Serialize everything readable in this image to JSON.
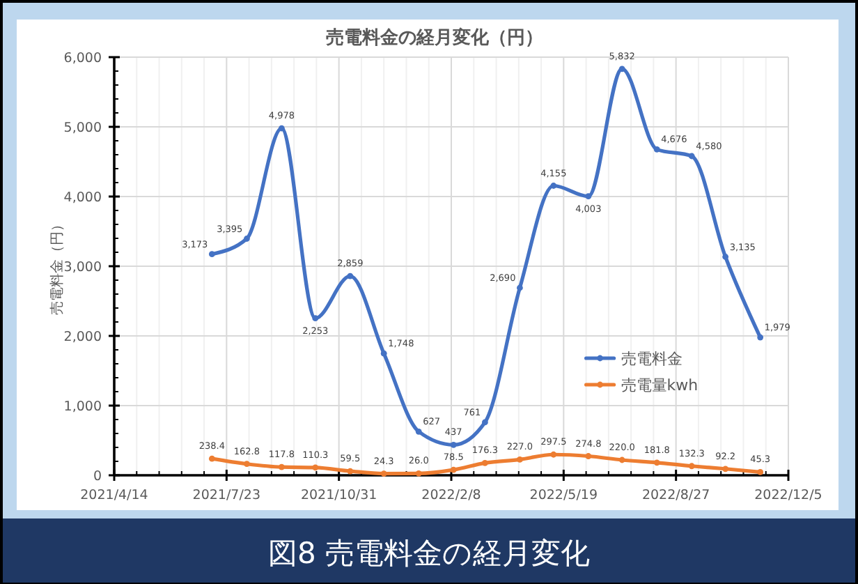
{
  "chart_data": {
    "type": "line",
    "title": "売電料金の経月変化（円）",
    "ylabel": "売電料金（円）",
    "annotations": [
      "図8 売電料金の経月変化"
    ],
    "x": [
      "2021-07-10",
      "2021-08-10",
      "2021-09-10",
      "2021-10-10",
      "2021-11-10",
      "2021-12-10",
      "2022-01-10",
      "2022-02-10",
      "2022-03-10",
      "2022-04-10",
      "2022-05-10",
      "2022-06-10",
      "2022-07-10",
      "2022-08-10",
      "2022-09-10",
      "2022-10-10",
      "2022-11-10"
    ],
    "series": [
      {
        "name": "売電料金",
        "color": "#4472c4",
        "values": [
          3173,
          3395,
          4978,
          2253,
          2859,
          1748,
          627,
          437,
          761,
          2690,
          4155,
          4003,
          5832,
          4676,
          4580,
          3135,
          1979
        ],
        "value_labels": [
          "3,173",
          "3,395",
          "4,978",
          "2,253",
          "2,859",
          "1,748",
          "627",
          "437",
          "761",
          "2,690",
          "4,155",
          "4,003",
          "5,832",
          "4,676",
          "4,580",
          "3,135",
          "1,979"
        ]
      },
      {
        "name": "売電量kwh",
        "color": "#ed7d31",
        "values": [
          238.4,
          162.8,
          117.8,
          110.3,
          59.5,
          24.3,
          26.0,
          78.5,
          176.3,
          227.0,
          297.5,
          274.8,
          220.0,
          181.8,
          132.3,
          92.2,
          45.3
        ],
        "value_labels": [
          "238.4",
          "162.8",
          "117.8",
          "110.3",
          "59.5",
          "24.3",
          "26.0",
          "78.5",
          "176.3",
          "227.0",
          "297.5",
          "274.8",
          "220.0",
          "181.8",
          "132.3",
          "92.2",
          "45.3"
        ]
      }
    ],
    "xlim": [
      "2021-04-14",
      "2022-12-05"
    ],
    "xticks": [
      {
        "value": "2021-04-14",
        "label": "2021/4/14"
      },
      {
        "value": "2021-05-04",
        "label": null
      },
      {
        "value": "2021-05-24",
        "label": null
      },
      {
        "value": "2021-06-13",
        "label": null
      },
      {
        "value": "2021-07-03",
        "label": null
      },
      {
        "value": "2021-07-23",
        "label": "2021/7/23"
      },
      {
        "value": "2021-08-12",
        "label": null
      },
      {
        "value": "2021-09-01",
        "label": null
      },
      {
        "value": "2021-09-21",
        "label": null
      },
      {
        "value": "2021-10-11",
        "label": null
      },
      {
        "value": "2021-10-31",
        "label": "2021/10/31"
      },
      {
        "value": "2021-11-20",
        "label": null
      },
      {
        "value": "2021-12-10",
        "label": null
      },
      {
        "value": "2021-12-30",
        "label": null
      },
      {
        "value": "2022-01-19",
        "label": null
      },
      {
        "value": "2022-02-08",
        "label": "2022/2/8"
      },
      {
        "value": "2022-02-28",
        "label": null
      },
      {
        "value": "2022-03-20",
        "label": null
      },
      {
        "value": "2022-04-09",
        "label": null
      },
      {
        "value": "2022-04-29",
        "label": null
      },
      {
        "value": "2022-05-19",
        "label": "2022/5/19"
      },
      {
        "value": "2022-06-08",
        "label": null
      },
      {
        "value": "2022-06-28",
        "label": null
      },
      {
        "value": "2022-07-18",
        "label": null
      },
      {
        "value": "2022-08-07",
        "label": null
      },
      {
        "value": "2022-08-27",
        "label": "2022/8/27"
      },
      {
        "value": "2022-09-16",
        "label": null
      },
      {
        "value": "2022-10-06",
        "label": null
      },
      {
        "value": "2022-10-26",
        "label": null
      },
      {
        "value": "2022-11-15",
        "label": null
      },
      {
        "value": "2022-12-05",
        "label": "2022/12/5"
      }
    ],
    "ylim": [
      0,
      6000
    ],
    "yticks": [
      0,
      {
        "value": 200,
        "label": null
      },
      {
        "value": 400,
        "label": null
      },
      {
        "value": 600,
        "label": null
      },
      {
        "value": 800,
        "label": null
      },
      {
        "value": 1000,
        "label": "1,000"
      },
      {
        "value": 1200,
        "label": null
      },
      {
        "value": 1400,
        "label": null
      },
      {
        "value": 1600,
        "label": null
      },
      {
        "value": 1800,
        "label": null
      },
      {
        "value": 2000,
        "label": "2,000"
      },
      {
        "value": 2200,
        "label": null
      },
      {
        "value": 2400,
        "label": null
      },
      {
        "value": 2600,
        "label": null
      },
      {
        "value": 2800,
        "label": null
      },
      {
        "value": 3000,
        "label": "3,000"
      },
      {
        "value": 3200,
        "label": null
      },
      {
        "value": 3400,
        "label": null
      },
      {
        "value": 3600,
        "label": null
      },
      {
        "value": 3800,
        "label": null
      },
      {
        "value": 4000,
        "label": "4,000"
      },
      {
        "value": 4200,
        "label": null
      },
      {
        "value": 4400,
        "label": null
      },
      {
        "value": 4600,
        "label": null
      },
      {
        "value": 4800,
        "label": null
      },
      {
        "value": 5000,
        "label": "5,000"
      },
      {
        "value": 5200,
        "label": null
      },
      {
        "value": 5400,
        "label": null
      },
      {
        "value": 5600,
        "label": null
      },
      {
        "value": 5800,
        "label": null
      },
      {
        "value": 6000,
        "label": "6,000"
      }
    ],
    "grid": true,
    "legend": "bottom right",
    "marker": "circle",
    "line_style": "solid"
  }
}
